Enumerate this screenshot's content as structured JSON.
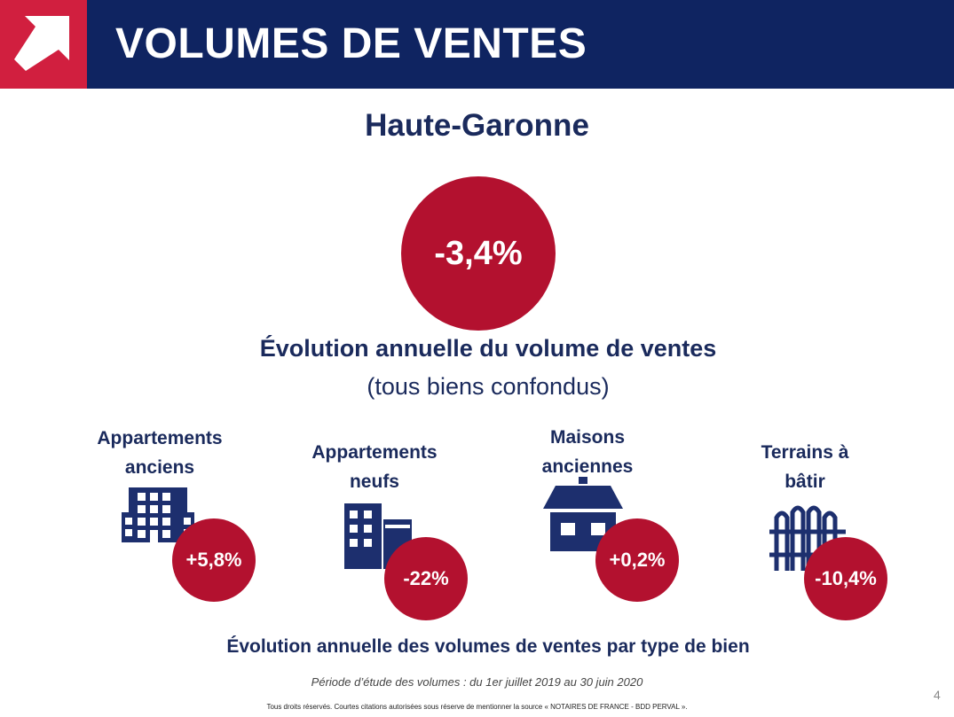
{
  "header": {
    "title": "VOLUMES DE VENTES",
    "logo_icon": "arrow-up-right-icon",
    "bg_color": "#0f2461",
    "logo_color": "#d11f3f"
  },
  "region": "Haute-Garonne",
  "overall": {
    "value": "-3,4%",
    "title": "Évolution annuelle du volume de ventes",
    "subtitle": "(tous biens confondus)",
    "circle_color": "#b3112f"
  },
  "categories": [
    {
      "label_line1": "Appartements",
      "label_line2": "anciens",
      "value": "+5,8%",
      "icon": "apartment-building-icon"
    },
    {
      "label_line1": "Appartements",
      "label_line2": "neufs",
      "value": "-22%",
      "icon": "new-apartment-building-icon"
    },
    {
      "label_line1": "Maisons",
      "label_line2": "anciennes",
      "value": "+0,2%",
      "icon": "house-icon"
    },
    {
      "label_line1": "Terrains à",
      "label_line2": "bâtir",
      "value": "-10,4%",
      "icon": "fence-icon"
    }
  ],
  "caption": "Évolution annuelle des volumes de ventes par type de bien",
  "period": "Période d’étude des volumes : du 1er juillet 2019 au 30 juin 2020",
  "page_number": "4",
  "footer": "Tous droits réservés. Courtes citations autorisées sous réserve de mentionner la source « NOTAIRES DE FRANCE - BDD PERVAL »."
}
